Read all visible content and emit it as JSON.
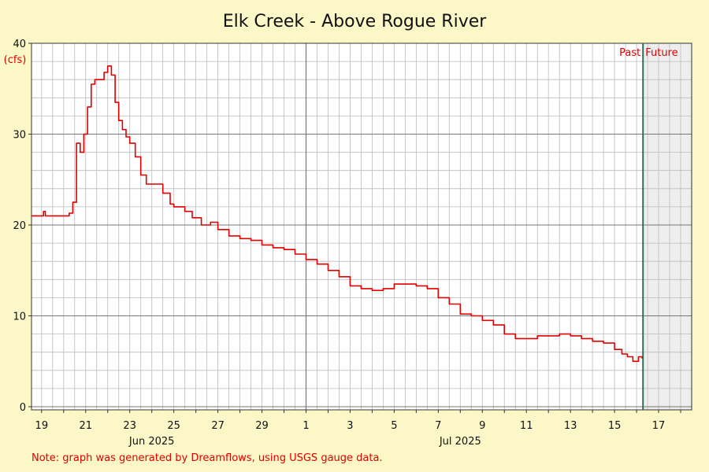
{
  "chart_data": {
    "type": "line",
    "title": "Elk Creek - Above Rogue River",
    "ylabel": "(cfs)",
    "xlabel": "",
    "ylim": [
      0,
      40
    ],
    "yticks": [
      0,
      10,
      20,
      30,
      40
    ],
    "y_grid_step": 2,
    "x_range_days": [
      "2025-06-18T13:00",
      "2025-07-18T12:00"
    ],
    "xtick_labels": [
      {
        "date": "2025-06-19",
        "label": "19"
      },
      {
        "date": "2025-06-21",
        "label": "21"
      },
      {
        "date": "2025-06-23",
        "label": "23"
      },
      {
        "date": "2025-06-25",
        "label": "25"
      },
      {
        "date": "2025-06-27",
        "label": "27"
      },
      {
        "date": "2025-06-29",
        "label": "29"
      },
      {
        "date": "2025-07-01",
        "label": "1"
      },
      {
        "date": "2025-07-03",
        "label": "3"
      },
      {
        "date": "2025-07-05",
        "label": "5"
      },
      {
        "date": "2025-07-07",
        "label": "7"
      },
      {
        "date": "2025-07-09",
        "label": "9"
      },
      {
        "date": "2025-07-11",
        "label": "11"
      },
      {
        "date": "2025-07-13",
        "label": "13"
      },
      {
        "date": "2025-07-15",
        "label": "15"
      },
      {
        "date": "2025-07-17",
        "label": "17"
      }
    ],
    "month_labels": [
      {
        "date": "2025-06-24",
        "label": "Jun 2025"
      },
      {
        "date": "2025-07-08",
        "label": "Jul 2025"
      }
    ],
    "month_divider": "2025-07-01",
    "now_marker": "2025-07-16T07:00",
    "past_label": "Past",
    "future_label": "Future",
    "grid": true,
    "colors": {
      "background": "#fbf7c6",
      "plot": "#ffffff",
      "future_shade": "#eeeeee",
      "line": "#e00000",
      "grid": "#bbbbbb",
      "major_grid": "#777777",
      "now_line": "#2f6f5a",
      "annotation": "#e00000"
    },
    "series": [
      {
        "x": [
          "2025-06-18T13:00",
          "2025-06-19T00:00",
          "2025-06-19T02:00",
          "2025-06-19T04:00",
          "2025-06-19T08:00",
          "2025-06-19T16:00",
          "2025-06-20T00:00",
          "2025-06-20T06:00",
          "2025-06-20T10:00",
          "2025-06-20T14:00",
          "2025-06-20T18:00",
          "2025-06-20T22:00",
          "2025-06-21T02:00",
          "2025-06-21T06:00",
          "2025-06-21T10:00",
          "2025-06-21T14:00",
          "2025-06-21T20:00",
          "2025-06-22T00:00",
          "2025-06-22T04:00",
          "2025-06-22T08:00",
          "2025-06-22T12:00",
          "2025-06-22T16:00",
          "2025-06-22T20:00",
          "2025-06-23T00:00",
          "2025-06-23T06:00",
          "2025-06-23T12:00",
          "2025-06-23T18:00",
          "2025-06-24T00:00",
          "2025-06-24T12:00",
          "2025-06-24T20:00",
          "2025-06-25T00:00",
          "2025-06-25T12:00",
          "2025-06-25T20:00",
          "2025-06-26T06:00",
          "2025-06-26T16:00",
          "2025-06-27T00:00",
          "2025-06-27T12:00",
          "2025-06-28T00:00",
          "2025-06-28T12:00",
          "2025-06-29T00:00",
          "2025-06-29T12:00",
          "2025-06-30T00:00",
          "2025-06-30T12:00",
          "2025-07-01T00:00",
          "2025-07-01T12:00",
          "2025-07-02T00:00",
          "2025-07-02T12:00",
          "2025-07-03T00:00",
          "2025-07-03T12:00",
          "2025-07-04T00:00",
          "2025-07-04T12:00",
          "2025-07-05T00:00",
          "2025-07-05T12:00",
          "2025-07-06T00:00",
          "2025-07-06T12:00",
          "2025-07-07T00:00",
          "2025-07-07T12:00",
          "2025-07-08T00:00",
          "2025-07-08T12:00",
          "2025-07-09T00:00",
          "2025-07-09T12:00",
          "2025-07-10T00:00",
          "2025-07-10T12:00",
          "2025-07-11T00:00",
          "2025-07-11T12:00",
          "2025-07-12T00:00",
          "2025-07-12T12:00",
          "2025-07-13T00:00",
          "2025-07-13T12:00",
          "2025-07-14T00:00",
          "2025-07-14T12:00",
          "2025-07-15T00:00",
          "2025-07-15T08:00",
          "2025-07-15T14:00",
          "2025-07-15T20:00",
          "2025-07-16T02:00",
          "2025-07-16T06:00"
        ],
        "y": [
          21.0,
          21.0,
          21.5,
          21.0,
          21.0,
          21.0,
          21.0,
          21.3,
          22.5,
          29.0,
          28.0,
          30.0,
          33.0,
          35.5,
          36.0,
          36.0,
          36.8,
          37.5,
          36.5,
          33.5,
          31.5,
          30.5,
          29.7,
          29.0,
          27.5,
          25.5,
          24.5,
          24.5,
          23.5,
          22.3,
          22.0,
          21.5,
          20.8,
          20.0,
          20.3,
          19.5,
          18.8,
          18.5,
          18.3,
          17.8,
          17.5,
          17.3,
          16.8,
          16.2,
          15.7,
          15.0,
          14.3,
          13.3,
          13.0,
          12.8,
          13.0,
          13.5,
          13.5,
          13.3,
          13.0,
          12.0,
          11.3,
          10.2,
          10.0,
          9.5,
          9.0,
          8.0,
          7.5,
          7.5,
          7.8,
          7.8,
          8.0,
          7.8,
          7.5,
          7.2,
          7.0,
          6.3,
          5.8,
          5.5,
          5.0,
          5.5,
          5.3
        ]
      }
    ],
    "annotations": [
      {
        "text": "Note: graph was generated by Dreamflows, using USGS gauge data."
      }
    ]
  }
}
